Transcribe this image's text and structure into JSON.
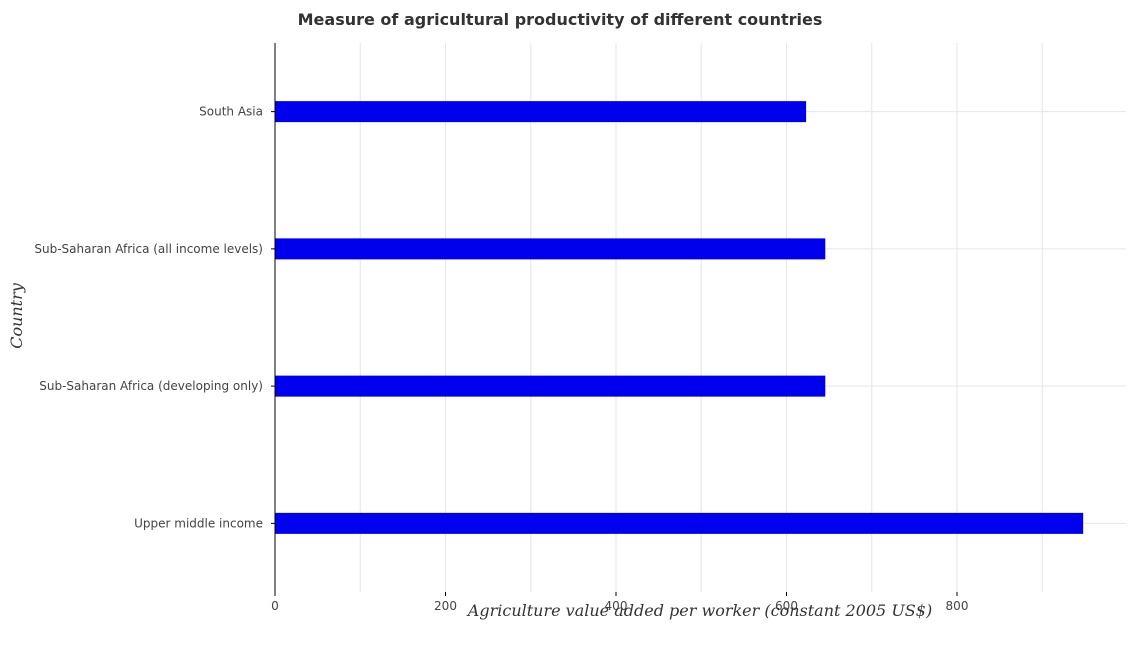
{
  "chart_data": {
    "type": "bar",
    "orientation": "horizontal",
    "title": "Measure of agricultural productivity of different countries",
    "xlabel": "Agriculture value added per worker (constant 2005 US$)",
    "ylabel": "Country",
    "categories": [
      "South Asia",
      "Sub-Saharan Africa (all income levels)",
      "Sub-Saharan Africa (developing only)",
      "Upper middle income"
    ],
    "values": [
      623,
      645.5,
      645.5,
      948
    ],
    "xlim": [
      0,
      1000
    ],
    "xticks": [
      0,
      200,
      400,
      600,
      800
    ],
    "xtick_labels": [
      "0",
      "200",
      "400",
      "600",
      "800"
    ],
    "bar_color": "#0000ee",
    "grid": true
  }
}
